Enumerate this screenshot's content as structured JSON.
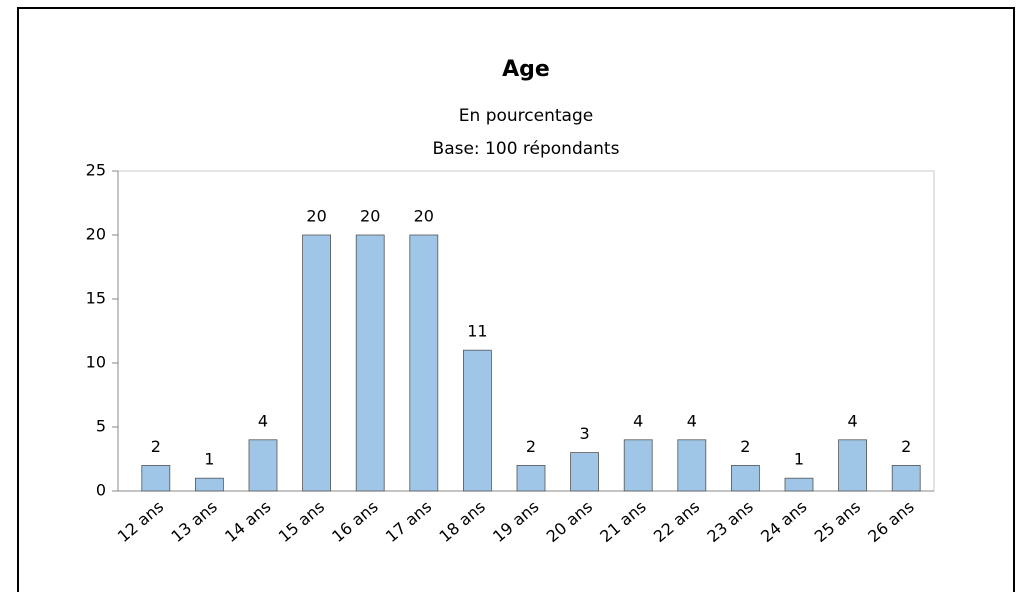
{
  "chart_data": {
    "type": "bar",
    "title": "Age",
    "subtitle": [
      "En pourcentage",
      "Base: 100 répondants"
    ],
    "categories": [
      "12 ans",
      "13 ans",
      "14 ans",
      "15 ans",
      "16 ans",
      "17 ans",
      "18 ans",
      "19 ans",
      "20 ans",
      "21 ans",
      "22 ans",
      "23 ans",
      "24 ans",
      "25 ans",
      "26 ans"
    ],
    "values": [
      2,
      1,
      4,
      20,
      20,
      20,
      11,
      2,
      3,
      4,
      4,
      2,
      1,
      4,
      2
    ],
    "color": "#9fc6e7",
    "ylim": [
      0,
      25
    ],
    "yticks": [
      0,
      5,
      10,
      15,
      20,
      25
    ],
    "grid": false
  }
}
